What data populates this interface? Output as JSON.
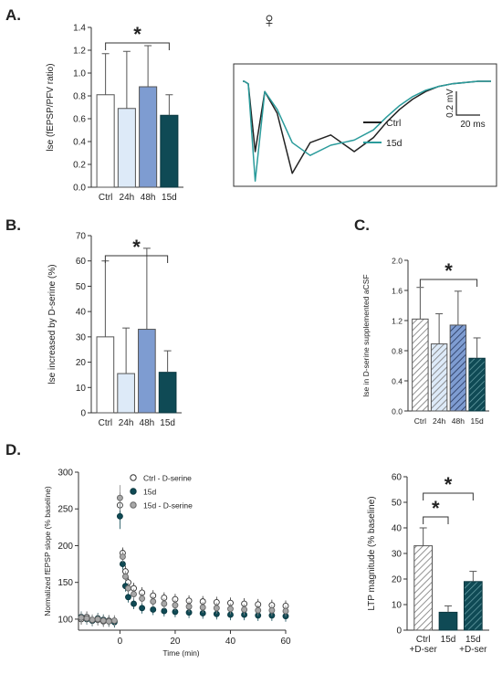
{
  "colors": {
    "ctrl": "#ffffff",
    "h24": "#ddeaf8",
    "h48": "#7e9cd1",
    "d15": "#0f4a55",
    "trace_ctrl": "#222222",
    "trace_15d": "#2a9b9b",
    "serine_marker": "#a8a8a8"
  },
  "panel_letters": [
    "A.",
    "B.",
    "C.",
    "D."
  ],
  "female_symbol": "♀",
  "chart_data": [
    {
      "id": "A",
      "type": "bar",
      "ylabel": "lse (fEPSP/PFV ratio)",
      "categories": [
        "Ctrl",
        "24h",
        "48h",
        "15d"
      ],
      "values": [
        0.81,
        0.69,
        0.88,
        0.63
      ],
      "errors": [
        0.36,
        0.5,
        0.36,
        0.18
      ],
      "ylim": [
        0,
        1.4
      ],
      "yticks": [
        "0.0",
        "0.2",
        "0.4",
        "0.6",
        "0.8",
        "1.0",
        "1.2",
        "1.4"
      ],
      "yticks_values": [
        0,
        0.2,
        0.4,
        0.6,
        0.8,
        1.0,
        1.2,
        1.4
      ],
      "significance": {
        "from": 0,
        "to": 3,
        "label": "*"
      }
    },
    {
      "id": "A-trace",
      "type": "line",
      "series": [
        {
          "name": "Ctrl",
          "y": [
            0,
            0,
            -0.02,
            -0.55,
            -0.08,
            -0.25,
            -0.72,
            -0.48,
            -0.42,
            -0.55,
            -0.44,
            -0.32,
            -0.22,
            -0.14,
            -0.08,
            -0.04,
            -0.02,
            -0.01,
            0,
            0
          ]
        },
        {
          "name": "15d",
          "y": [
            0,
            0,
            -0.02,
            -0.78,
            -0.08,
            -0.22,
            -0.48,
            -0.58,
            -0.5,
            -0.46,
            -0.38,
            -0.28,
            -0.19,
            -0.12,
            -0.07,
            -0.04,
            -0.02,
            -0.01,
            0,
            0
          ]
        }
      ],
      "scalebar": {
        "y_label": "0.2 mV",
        "x_label": "20 ms"
      }
    },
    {
      "id": "B",
      "type": "bar",
      "ylabel": "lse increased by D-serine (%)",
      "categories": [
        "Ctrl",
        "24h",
        "48h",
        "15d"
      ],
      "values": [
        30,
        15.5,
        33,
        16
      ],
      "errors": [
        30,
        18,
        32,
        8.5
      ],
      "ylim": [
        0,
        70
      ],
      "yticks": [
        "0",
        "10",
        "20",
        "30",
        "40",
        "50",
        "60",
        "70"
      ],
      "yticks_values": [
        0,
        10,
        20,
        30,
        40,
        50,
        60,
        70
      ],
      "significance": {
        "from": 0,
        "to": 3,
        "label": "*"
      }
    },
    {
      "id": "C",
      "type": "bar",
      "ylabel": "lse in D-serine supplemented aCSF",
      "categories": [
        "Ctrl",
        "24h",
        "48h",
        "15d"
      ],
      "values": [
        1.22,
        0.89,
        1.14,
        0.7
      ],
      "errors": [
        0.42,
        0.4,
        0.45,
        0.27
      ],
      "ylim": [
        0,
        2.0
      ],
      "yticks": [
        "0.0",
        "0.4",
        "0.8",
        "1.2",
        "1.6",
        "2.0"
      ],
      "yticks_values": [
        0,
        0.4,
        0.8,
        1.2,
        1.6,
        2.0
      ],
      "hatched": true,
      "significance": {
        "from": 0,
        "to": 3,
        "label": "*"
      }
    },
    {
      "id": "D-timecourse",
      "type": "scatter",
      "ylabel": "Normalized fEPSP slope (% baseline)",
      "xlabel": "Time (min)",
      "xlim": [
        -15,
        60
      ],
      "ylim": [
        85,
        300
      ],
      "xticks": [
        "0",
        "20",
        "40",
        "60"
      ],
      "xticks_values": [
        0,
        20,
        40,
        60
      ],
      "yticks": [
        "100",
        "150",
        "200",
        "250",
        "300"
      ],
      "yticks_values": [
        100,
        150,
        200,
        250,
        300
      ],
      "series": [
        {
          "name": "Ctrl - D-serine",
          "x": [
            -14,
            -12,
            -10,
            -8,
            -6,
            -4,
            -2,
            0,
            1,
            2,
            3,
            5,
            8,
            12,
            16,
            20,
            25,
            30,
            35,
            40,
            45,
            50,
            55,
            60
          ],
          "y": [
            100,
            103,
            98,
            99,
            97,
            98,
            97,
            255,
            190,
            165,
            150,
            142,
            136,
            132,
            129,
            127,
            125,
            124,
            123,
            122,
            121,
            120,
            119,
            118
          ]
        },
        {
          "name": "15d",
          "x": [
            -14,
            -12,
            -10,
            -8,
            -6,
            -4,
            -2,
            0,
            1,
            2,
            3,
            5,
            8,
            12,
            16,
            20,
            25,
            30,
            35,
            40,
            45,
            50,
            55,
            60
          ],
          "y": [
            103,
            100,
            98,
            101,
            99,
            97,
            96,
            240,
            175,
            145,
            130,
            121,
            115,
            113,
            111,
            110,
            109,
            108,
            107,
            106,
            106,
            105,
            105,
            104
          ]
        },
        {
          "name": "15d - D-serine",
          "x": [
            -14,
            -12,
            -10,
            -8,
            -6,
            -4,
            -2,
            0,
            1,
            2,
            3,
            5,
            8,
            12,
            16,
            20,
            25,
            30,
            35,
            40,
            45,
            50,
            55,
            60
          ],
          "y": [
            102,
            101,
            99,
            100,
            98,
            97,
            98,
            265,
            185,
            158,
            142,
            134,
            128,
            124,
            121,
            119,
            117,
            116,
            115,
            114,
            113,
            112,
            112,
            111
          ]
        }
      ]
    },
    {
      "id": "D-ltp",
      "type": "bar",
      "ylabel": "LTP magnitude (% baseline)",
      "categories": [
        "Ctrl\n+D-ser",
        "15d",
        "15d\n+D-ser"
      ],
      "category_lines": [
        [
          "Ctrl",
          "+D-ser"
        ],
        [
          "15d"
        ],
        [
          "15d",
          "+D-ser"
        ]
      ],
      "values": [
        33,
        7,
        19
      ],
      "errors": [
        7,
        2.5,
        4
      ],
      "ylim": [
        0,
        60
      ],
      "yticks": [
        "0",
        "10",
        "20",
        "30",
        "40",
        "50",
        "60"
      ],
      "yticks_values": [
        0,
        10,
        20,
        30,
        40,
        50,
        60
      ],
      "hatched": true,
      "significance": [
        {
          "from": 0,
          "to": 1,
          "label": "*"
        },
        {
          "from": 0,
          "to": 2,
          "label": "*"
        }
      ]
    }
  ]
}
